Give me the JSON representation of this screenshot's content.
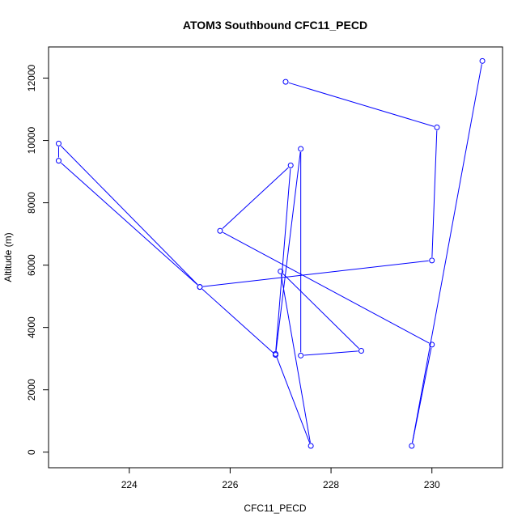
{
  "chart_data": {
    "type": "line",
    "title": "ATOM3 Southbound CFC11_PECD",
    "xlabel": "CFC11_PECD",
    "ylabel": "Altitude (m)",
    "xlim": [
      222.4,
      231.4
    ],
    "ylim": [
      -500,
      13000
    ],
    "x_ticks": [
      224,
      226,
      228,
      230
    ],
    "y_ticks": [
      0,
      2000,
      4000,
      6000,
      8000,
      10000,
      12000
    ],
    "line_color": "#0000ff",
    "marker": "open-circle",
    "series": [
      {
        "x": [
          231.0,
          229.6,
          230.0,
          225.8,
          227.2,
          226.9,
          227.6,
          227.0,
          228.6,
          227.4,
          227.4,
          226.9,
          225.4,
          222.6,
          222.6,
          225.4,
          230.0,
          230.1,
          227.1
        ],
        "y": [
          12550,
          200,
          3450,
          7100,
          9200,
          3150,
          200,
          5800,
          3250,
          3100,
          9730,
          3120,
          5300,
          9350,
          9900,
          5300,
          6150,
          10420,
          11880
        ]
      }
    ]
  }
}
